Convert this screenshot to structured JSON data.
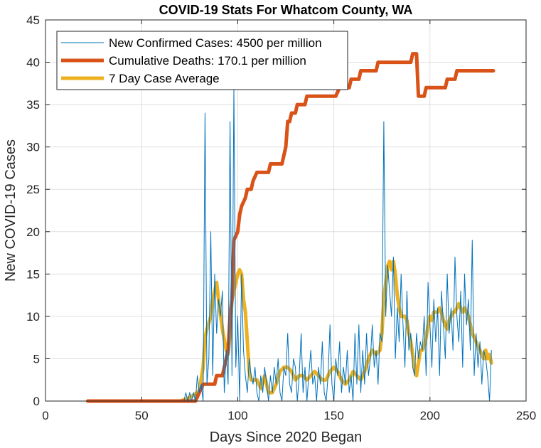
{
  "chart_data": {
    "type": "line",
    "title": "COVID-19 Stats For Whatcom County, WA",
    "xlabel": "Days Since 2020 Began",
    "ylabel": "New COVID-19 Cases",
    "xlim": [
      0,
      250
    ],
    "ylim": [
      0,
      45
    ],
    "xticks": [
      0,
      50,
      100,
      150,
      200,
      250
    ],
    "yticks": [
      0,
      5,
      10,
      15,
      20,
      25,
      30,
      35,
      40,
      45
    ],
    "grid": true,
    "legend_position": "top-left",
    "series": [
      {
        "name": "New Confirmed Cases: 4500 per million",
        "color": "#0072bd",
        "style": "thin",
        "points": [
          [
            22,
            0
          ],
          [
            70,
            0
          ],
          [
            72,
            0
          ],
          [
            73,
            1
          ],
          [
            74,
            0
          ],
          [
            75,
            1
          ],
          [
            76,
            0
          ],
          [
            77,
            1
          ],
          [
            78,
            0
          ],
          [
            79,
            3
          ],
          [
            80,
            1
          ],
          [
            81,
            2
          ],
          [
            82,
            0
          ],
          [
            83,
            34
          ],
          [
            84,
            2
          ],
          [
            85,
            5
          ],
          [
            86,
            20
          ],
          [
            87,
            3
          ],
          [
            88,
            15
          ],
          [
            89,
            8
          ],
          [
            90,
            12
          ],
          [
            91,
            10
          ],
          [
            92,
            13
          ],
          [
            93,
            1
          ],
          [
            94,
            6
          ],
          [
            95,
            2
          ],
          [
            96,
            33
          ],
          [
            97,
            3
          ],
          [
            98,
            37
          ],
          [
            99,
            4
          ],
          [
            100,
            10
          ],
          [
            101,
            0
          ],
          [
            102,
            15
          ],
          [
            103,
            6
          ],
          [
            104,
            3
          ],
          [
            105,
            1
          ],
          [
            106,
            5
          ],
          [
            107,
            3
          ],
          [
            108,
            2
          ],
          [
            109,
            4
          ],
          [
            110,
            1
          ],
          [
            111,
            0
          ],
          [
            112,
            3
          ],
          [
            113,
            1
          ],
          [
            114,
            4
          ],
          [
            115,
            2
          ],
          [
            116,
            0
          ],
          [
            117,
            3
          ],
          [
            118,
            1
          ],
          [
            119,
            4
          ],
          [
            120,
            2
          ],
          [
            121,
            5
          ],
          [
            122,
            1
          ],
          [
            123,
            0
          ],
          [
            124,
            4
          ],
          [
            125,
            3
          ],
          [
            126,
            8
          ],
          [
            127,
            2
          ],
          [
            128,
            1
          ],
          [
            129,
            5
          ],
          [
            130,
            4
          ],
          [
            131,
            0
          ],
          [
            132,
            3
          ],
          [
            133,
            8
          ],
          [
            134,
            1
          ],
          [
            135,
            4
          ],
          [
            136,
            0
          ],
          [
            137,
            3
          ],
          [
            138,
            6
          ],
          [
            139,
            2
          ],
          [
            140,
            3
          ],
          [
            141,
            0
          ],
          [
            142,
            4
          ],
          [
            143,
            2
          ],
          [
            144,
            7
          ],
          [
            145,
            1
          ],
          [
            146,
            0
          ],
          [
            147,
            3
          ],
          [
            148,
            9
          ],
          [
            149,
            2
          ],
          [
            150,
            0
          ],
          [
            151,
            5
          ],
          [
            152,
            3
          ],
          [
            153,
            7
          ],
          [
            154,
            1
          ],
          [
            155,
            4
          ],
          [
            156,
            2
          ],
          [
            157,
            6
          ],
          [
            158,
            1
          ],
          [
            159,
            3
          ],
          [
            160,
            0
          ],
          [
            161,
            8
          ],
          [
            162,
            2
          ],
          [
            163,
            9
          ],
          [
            164,
            1
          ],
          [
            165,
            6
          ],
          [
            166,
            2
          ],
          [
            167,
            8
          ],
          [
            168,
            3
          ],
          [
            169,
            5
          ],
          [
            170,
            9
          ],
          [
            171,
            4
          ],
          [
            172,
            6
          ],
          [
            173,
            2
          ],
          [
            174,
            8
          ],
          [
            175,
            7
          ],
          [
            176,
            33
          ],
          [
            177,
            10
          ],
          [
            178,
            16
          ],
          [
            179,
            13
          ],
          [
            180,
            10
          ],
          [
            181,
            17
          ],
          [
            182,
            5
          ],
          [
            183,
            11
          ],
          [
            184,
            7
          ],
          [
            185,
            15
          ],
          [
            186,
            9
          ],
          [
            187,
            4
          ],
          [
            188,
            13
          ],
          [
            189,
            6
          ],
          [
            190,
            8
          ],
          [
            191,
            4
          ],
          [
            192,
            3
          ],
          [
            193,
            8
          ],
          [
            194,
            5
          ],
          [
            195,
            7
          ],
          [
            196,
            6
          ],
          [
            197,
            10
          ],
          [
            198,
            3
          ],
          [
            199,
            14
          ],
          [
            200,
            9
          ],
          [
            201,
            4
          ],
          [
            202,
            12
          ],
          [
            203,
            7
          ],
          [
            204,
            11
          ],
          [
            205,
            3
          ],
          [
            206,
            13
          ],
          [
            207,
            9
          ],
          [
            208,
            5
          ],
          [
            209,
            15
          ],
          [
            210,
            8
          ],
          [
            211,
            11
          ],
          [
            212,
            6
          ],
          [
            213,
            17
          ],
          [
            214,
            10
          ],
          [
            215,
            7
          ],
          [
            216,
            13
          ],
          [
            217,
            4
          ],
          [
            218,
            15
          ],
          [
            219,
            9
          ],
          [
            220,
            12
          ],
          [
            221,
            6
          ],
          [
            222,
            19
          ],
          [
            223,
            3
          ],
          [
            224,
            8
          ],
          [
            225,
            4
          ],
          [
            226,
            7
          ],
          [
            227,
            2
          ],
          [
            228,
            6
          ],
          [
            229,
            5
          ],
          [
            230,
            3
          ],
          [
            231,
            0
          ],
          [
            232,
            6
          ]
        ]
      },
      {
        "name": "Cumulative Deaths: 170.1 per million",
        "color": "#d95319",
        "style": "thick",
        "points": [
          [
            22,
            0
          ],
          [
            78,
            0
          ],
          [
            80,
            1
          ],
          [
            82,
            2
          ],
          [
            88,
            2
          ],
          [
            89,
            3
          ],
          [
            92,
            3
          ],
          [
            93,
            4
          ],
          [
            94,
            5
          ],
          [
            95,
            6
          ],
          [
            96,
            10
          ],
          [
            97,
            12
          ],
          [
            98,
            19
          ],
          [
            100,
            20
          ],
          [
            101,
            22
          ],
          [
            102,
            23
          ],
          [
            104,
            24
          ],
          [
            105,
            25
          ],
          [
            107,
            25
          ],
          [
            108,
            26
          ],
          [
            110,
            27
          ],
          [
            116,
            27
          ],
          [
            117,
            28
          ],
          [
            123,
            28
          ],
          [
            124,
            29
          ],
          [
            125,
            30
          ],
          [
            126,
            33
          ],
          [
            127,
            33
          ],
          [
            128,
            34
          ],
          [
            130,
            34
          ],
          [
            131,
            35
          ],
          [
            135,
            35
          ],
          [
            136,
            36
          ],
          [
            151,
            36
          ],
          [
            153,
            37
          ],
          [
            158,
            37
          ],
          [
            159,
            38
          ],
          [
            163,
            38
          ],
          [
            164,
            39
          ],
          [
            172,
            39
          ],
          [
            173,
            40
          ],
          [
            190,
            40
          ],
          [
            191,
            41
          ],
          [
            193,
            41
          ],
          [
            194,
            36
          ],
          [
            197,
            36
          ],
          [
            198,
            37
          ],
          [
            208,
            37
          ],
          [
            209,
            38
          ],
          [
            213,
            38
          ],
          [
            214,
            39
          ],
          [
            233,
            39
          ]
        ]
      },
      {
        "name": "7 Day Case Average",
        "color": "#edb120",
        "style": "thick",
        "points": [
          [
            22,
            0
          ],
          [
            70,
            0
          ],
          [
            74,
            0.3
          ],
          [
            77,
            0.7
          ],
          [
            80,
            1.2
          ],
          [
            82,
            4
          ],
          [
            83,
            7.5
          ],
          [
            84,
            8.5
          ],
          [
            86,
            10
          ],
          [
            87,
            12
          ],
          [
            88,
            13
          ],
          [
            89,
            14
          ],
          [
            90,
            12
          ],
          [
            92,
            8.5
          ],
          [
            94,
            6
          ],
          [
            95,
            5.5
          ],
          [
            96,
            8
          ],
          [
            97,
            12
          ],
          [
            98,
            13
          ],
          [
            99,
            14
          ],
          [
            100,
            15
          ],
          [
            101,
            15.5
          ],
          [
            102,
            15
          ],
          [
            103,
            12
          ],
          [
            104,
            10.5
          ],
          [
            105,
            7
          ],
          [
            106,
            3.5
          ],
          [
            107,
            2.5
          ],
          [
            110,
            2.5
          ],
          [
            112,
            1.5
          ],
          [
            114,
            3
          ],
          [
            116,
            1
          ],
          [
            118,
            1
          ],
          [
            120,
            2
          ],
          [
            122,
            3.5
          ],
          [
            124,
            4
          ],
          [
            126,
            4
          ],
          [
            128,
            3.5
          ],
          [
            130,
            2.5
          ],
          [
            132,
            3
          ],
          [
            134,
            3
          ],
          [
            136,
            2.5
          ],
          [
            138,
            3
          ],
          [
            140,
            3.5
          ],
          [
            142,
            3
          ],
          [
            144,
            2.5
          ],
          [
            146,
            2.5
          ],
          [
            148,
            3.5
          ],
          [
            150,
            4
          ],
          [
            152,
            3.5
          ],
          [
            154,
            2.5
          ],
          [
            156,
            2
          ],
          [
            158,
            2.5
          ],
          [
            160,
            3.5
          ],
          [
            162,
            3
          ],
          [
            164,
            2.5
          ],
          [
            166,
            3.5
          ],
          [
            168,
            5
          ],
          [
            170,
            6
          ],
          [
            172,
            5.5
          ],
          [
            174,
            6
          ],
          [
            175,
            8
          ],
          [
            176,
            12
          ],
          [
            177,
            14
          ],
          [
            178,
            16
          ],
          [
            179,
            16.5
          ],
          [
            180,
            15.5
          ],
          [
            181,
            16.5
          ],
          [
            182,
            15
          ],
          [
            183,
            12.5
          ],
          [
            184,
            11
          ],
          [
            185,
            10
          ],
          [
            186,
            10
          ],
          [
            187,
            10
          ],
          [
            188,
            9.5
          ],
          [
            189,
            8
          ],
          [
            190,
            7
          ],
          [
            191,
            5.5
          ],
          [
            192,
            4
          ],
          [
            193,
            3
          ],
          [
            194,
            4.5
          ],
          [
            195,
            6
          ],
          [
            196,
            6
          ],
          [
            197,
            6.5
          ],
          [
            198,
            7.5
          ],
          [
            199,
            9
          ],
          [
            200,
            10
          ],
          [
            201,
            9.5
          ],
          [
            202,
            10.5
          ],
          [
            204,
            10.5
          ],
          [
            205,
            11
          ],
          [
            206,
            10.5
          ],
          [
            207,
            9.5
          ],
          [
            208,
            9
          ],
          [
            209,
            8.5
          ],
          [
            210,
            9.5
          ],
          [
            211,
            10
          ],
          [
            212,
            10.5
          ],
          [
            213,
            10.5
          ],
          [
            214,
            11
          ],
          [
            215,
            11.5
          ],
          [
            216,
            11
          ],
          [
            217,
            10.5
          ],
          [
            218,
            11
          ],
          [
            219,
            10.5
          ],
          [
            220,
            10
          ],
          [
            221,
            9
          ],
          [
            222,
            8
          ],
          [
            223,
            7.5
          ],
          [
            224,
            7
          ],
          [
            225,
            6.5
          ],
          [
            226,
            6
          ],
          [
            227,
            5.5
          ],
          [
            228,
            5
          ],
          [
            229,
            6
          ],
          [
            230,
            5
          ],
          [
            231,
            5.5
          ],
          [
            232,
            4.5
          ]
        ]
      }
    ]
  }
}
